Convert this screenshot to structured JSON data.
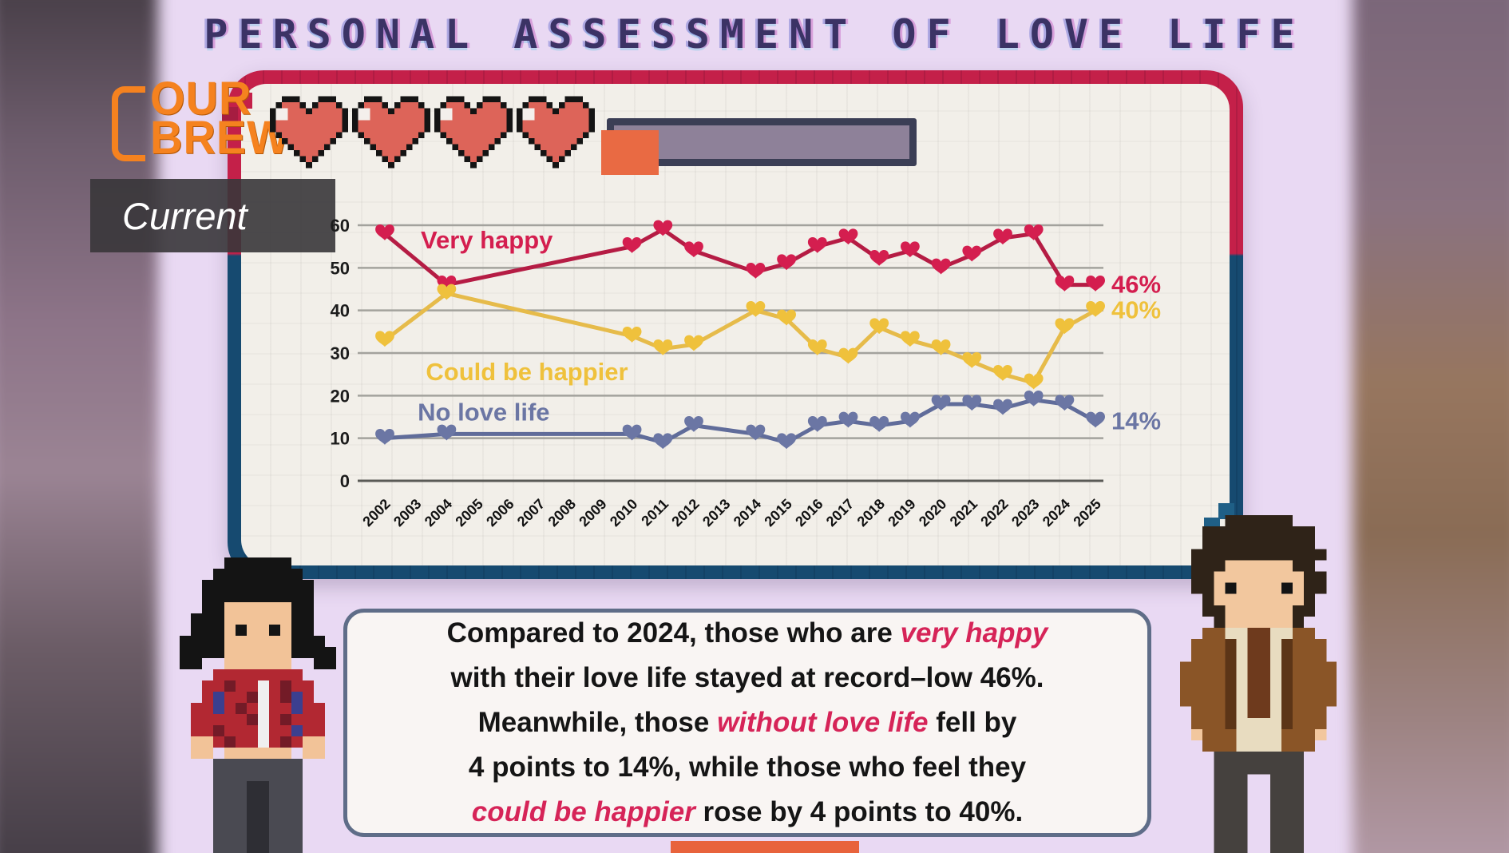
{
  "title": "PERSONAL ASSESSMENT OF LOVE LIFE",
  "logo": {
    "line1": "OUR",
    "line2": "BREW",
    "color": "#f5821f"
  },
  "current_label": "Current",
  "health_bar": {
    "hearts": 4,
    "heart_color": "#dd6459",
    "bar_fill": "#8e8199",
    "stub_color": "#e96a43"
  },
  "chart_data": {
    "type": "line",
    "title": "Personal assessment of love life, 2002-2025",
    "xlabel": "",
    "ylabel": "",
    "ylim": [
      0,
      62
    ],
    "yticks": [
      0,
      10,
      20,
      30,
      40,
      50,
      60
    ],
    "x_ticks": [
      2002,
      2003,
      2004,
      2005,
      2006,
      2007,
      2008,
      2009,
      2010,
      2011,
      2012,
      2013,
      2014,
      2015,
      2016,
      2017,
      2018,
      2019,
      2020,
      2021,
      2022,
      2023,
      2024,
      2025
    ],
    "grid": "horizontal",
    "legend_position": "inline-annotations",
    "marker": "heart",
    "series": [
      {
        "name": "Very happy",
        "marker_color": "#d41e4f",
        "line_color": "#b51c44",
        "end_label": "46%",
        "label_x": 2005.3,
        "label_y": 54.6,
        "points": [
          {
            "year": 2002,
            "value": 58
          },
          {
            "year": 2004,
            "value": 46
          },
          {
            "year": 2010,
            "value": 55
          },
          {
            "year": 2011,
            "value": 59
          },
          {
            "year": 2012,
            "value": 54
          },
          {
            "year": 2014,
            "value": 49
          },
          {
            "year": 2015,
            "value": 51
          },
          {
            "year": 2016,
            "value": 55
          },
          {
            "year": 2017,
            "value": 57
          },
          {
            "year": 2018,
            "value": 52
          },
          {
            "year": 2019,
            "value": 54
          },
          {
            "year": 2020,
            "value": 50
          },
          {
            "year": 2021,
            "value": 53
          },
          {
            "year": 2022,
            "value": 57
          },
          {
            "year": 2023,
            "value": 58
          },
          {
            "year": 2024,
            "value": 46
          },
          {
            "year": 2025,
            "value": 46
          }
        ]
      },
      {
        "name": "Could be happier",
        "marker_color": "#efc13c",
        "line_color": "#e6bb4a",
        "end_label": "40%",
        "label_x": 2006.6,
        "label_y": 23.6,
        "points": [
          {
            "year": 2002,
            "value": 33
          },
          {
            "year": 2004,
            "value": 44
          },
          {
            "year": 2010,
            "value": 34
          },
          {
            "year": 2011,
            "value": 31
          },
          {
            "year": 2012,
            "value": 32
          },
          {
            "year": 2014,
            "value": 40
          },
          {
            "year": 2015,
            "value": 38
          },
          {
            "year": 2016,
            "value": 31
          },
          {
            "year": 2017,
            "value": 29
          },
          {
            "year": 2018,
            "value": 36
          },
          {
            "year": 2019,
            "value": 33
          },
          {
            "year": 2020,
            "value": 31
          },
          {
            "year": 2021,
            "value": 28
          },
          {
            "year": 2022,
            "value": 25
          },
          {
            "year": 2023,
            "value": 23
          },
          {
            "year": 2024,
            "value": 36
          },
          {
            "year": 2025,
            "value": 40
          }
        ]
      },
      {
        "name": "No love life",
        "marker_color": "#6b76a4",
        "line_color": "#606c9a",
        "end_label": "14%",
        "label_x": 2005.2,
        "label_y": 14.2,
        "points": [
          {
            "year": 2002,
            "value": 10
          },
          {
            "year": 2004,
            "value": 11
          },
          {
            "year": 2010,
            "value": 11
          },
          {
            "year": 2011,
            "value": 9
          },
          {
            "year": 2012,
            "value": 13
          },
          {
            "year": 2014,
            "value": 11
          },
          {
            "year": 2015,
            "value": 9
          },
          {
            "year": 2016,
            "value": 13
          },
          {
            "year": 2017,
            "value": 14
          },
          {
            "year": 2018,
            "value": 13
          },
          {
            "year": 2019,
            "value": 14
          },
          {
            "year": 2020,
            "value": 18
          },
          {
            "year": 2021,
            "value": 18
          },
          {
            "year": 2022,
            "value": 17
          },
          {
            "year": 2023,
            "value": 19
          },
          {
            "year": 2024,
            "value": 18
          },
          {
            "year": 2025,
            "value": 14
          }
        ]
      }
    ]
  },
  "summary": {
    "lines": [
      [
        {
          "t": "Compared to 2024, those who are "
        },
        {
          "t": "very happy",
          "accent": true
        }
      ],
      [
        {
          "t": "with their love life stayed at record–low 46%."
        }
      ],
      [
        {
          "t": "Meanwhile, those "
        },
        {
          "t": "without love life",
          "accent": true
        },
        {
          "t": " fell by"
        }
      ],
      [
        {
          "t": "4 points to 14%, while those who feel they"
        }
      ],
      [
        {
          "t": "could be happier",
          "accent": true
        },
        {
          "t": " rose by 4 points to 40%."
        }
      ]
    ]
  },
  "characters": {
    "left": "pixel-girl",
    "right": "pixel-boy"
  }
}
